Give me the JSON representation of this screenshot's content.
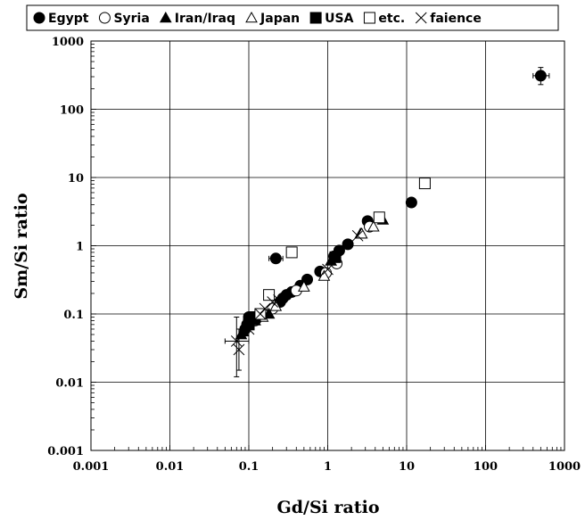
{
  "chart_data": {
    "type": "scatter",
    "xlabel": "Gd/Si ratio",
    "ylabel": "Sm/Si ratio",
    "xscale": "log",
    "yscale": "log",
    "xlim": [
      0.001,
      1000
    ],
    "ylim": [
      0.001,
      1000
    ],
    "x_ticks": [
      "0.001",
      "0.01",
      "0.1",
      "1",
      "10",
      "100",
      "1000"
    ],
    "y_ticks": [
      "0.001",
      "0.01",
      "0.1",
      "1",
      "10",
      "100",
      "1000"
    ],
    "grid": true,
    "legend_position": "top",
    "series": [
      {
        "name": "Egypt",
        "marker": "filled-circle",
        "points": [
          {
            "x": 500,
            "y": 310,
            "xerr": [
              400,
              640
            ],
            "yerr": [
              230,
              410
            ]
          },
          {
            "x": 11.5,
            "y": 4.3
          },
          {
            "x": 3.2,
            "y": 2.3
          },
          {
            "x": 1.8,
            "y": 1.05
          },
          {
            "x": 1.4,
            "y": 0.85
          },
          {
            "x": 1.2,
            "y": 0.7
          },
          {
            "x": 0.8,
            "y": 0.42
          },
          {
            "x": 0.55,
            "y": 0.32
          },
          {
            "x": 0.45,
            "y": 0.26
          },
          {
            "x": 0.35,
            "y": 0.21
          },
          {
            "x": 0.3,
            "y": 0.19
          },
          {
            "x": 0.27,
            "y": 0.17
          },
          {
            "x": 0.25,
            "y": 0.15
          },
          {
            "x": 0.22,
            "y": 0.65,
            "xerr": [
              0.18,
              0.27
            ]
          },
          {
            "x": 0.13,
            "y": 0.09
          },
          {
            "x": 0.11,
            "y": 0.08
          },
          {
            "x": 0.1,
            "y": 0.09
          },
          {
            "x": 0.095,
            "y": 0.07
          },
          {
            "x": 0.09,
            "y": 0.06
          }
        ]
      },
      {
        "name": "Syria",
        "marker": "open-circle",
        "points": [
          {
            "x": 3.4,
            "y": 1.9
          },
          {
            "x": 1.3,
            "y": 0.55
          },
          {
            "x": 0.95,
            "y": 0.4
          },
          {
            "x": 0.4,
            "y": 0.22
          },
          {
            "x": 0.2,
            "y": 0.12
          },
          {
            "x": 0.12,
            "y": 0.08
          }
        ]
      },
      {
        "name": "Iran/Iraq",
        "marker": "filled-triangle",
        "points": [
          {
            "x": 5.0,
            "y": 2.4
          },
          {
            "x": 2.6,
            "y": 1.5
          },
          {
            "x": 1.1,
            "y": 0.6
          },
          {
            "x": 0.18,
            "y": 0.1
          },
          {
            "x": 0.12,
            "y": 0.08
          },
          {
            "x": 0.085,
            "y": 0.055
          },
          {
            "x": 0.08,
            "y": 0.05
          }
        ]
      },
      {
        "name": "Japan",
        "marker": "open-triangle",
        "points": [
          {
            "x": 3.8,
            "y": 1.9
          },
          {
            "x": 2.7,
            "y": 1.5
          },
          {
            "x": 0.9,
            "y": 0.36
          },
          {
            "x": 0.5,
            "y": 0.25
          },
          {
            "x": 0.22,
            "y": 0.13
          },
          {
            "x": 0.15,
            "y": 0.09
          }
        ]
      },
      {
        "name": "USA",
        "marker": "filled-square",
        "points": [
          {
            "x": 1.25,
            "y": 0.68
          },
          {
            "x": 0.12,
            "y": 0.09
          },
          {
            "x": 0.1,
            "y": 0.07
          }
        ]
      },
      {
        "name": "etc.",
        "marker": "open-square",
        "points": [
          {
            "x": 17,
            "y": 8.2
          },
          {
            "x": 4.5,
            "y": 2.6
          },
          {
            "x": 0.35,
            "y": 0.8
          },
          {
            "x": 0.18,
            "y": 0.19
          },
          {
            "x": 0.14,
            "y": 0.1
          }
        ]
      },
      {
        "name": "faience",
        "marker": "cross",
        "points": [
          {
            "x": 0.07,
            "y": 0.04,
            "xerr": [
              0.05,
              0.1
            ],
            "yerr": [
              0.012,
              0.09
            ]
          },
          {
            "x": 0.075,
            "y": 0.03,
            "yerr": [
              0.015,
              0.06
            ]
          },
          {
            "x": 0.2,
            "y": 0.15
          },
          {
            "x": 0.16,
            "y": 0.12
          },
          {
            "x": 0.14,
            "y": 0.1
          },
          {
            "x": 0.24,
            "y": 0.16
          },
          {
            "x": 0.1,
            "y": 0.06
          },
          {
            "x": 2.4,
            "y": 1.4
          },
          {
            "x": 1.0,
            "y": 0.45
          }
        ]
      }
    ]
  }
}
